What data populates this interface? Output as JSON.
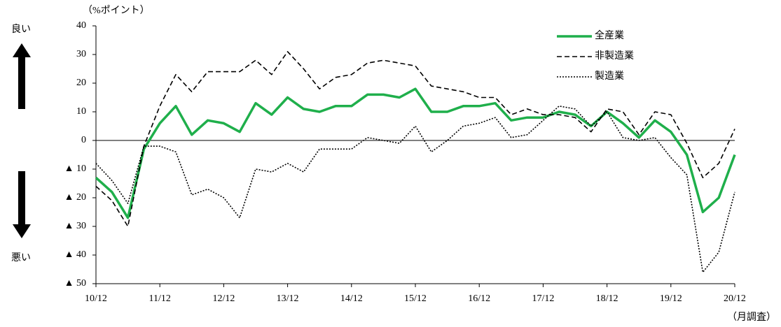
{
  "chart_data": {
    "type": "line",
    "y_unit_label": "（%ポイント）",
    "good_label": "良い",
    "bad_label": "悪い",
    "x_note": "（月調査）",
    "categories": [
      "10/12",
      null,
      null,
      null,
      "11/12",
      null,
      null,
      null,
      "12/12",
      null,
      null,
      null,
      "13/12",
      null,
      null,
      null,
      "14/12",
      null,
      null,
      null,
      "15/12",
      null,
      null,
      null,
      "16/12",
      null,
      null,
      null,
      "17/12",
      null,
      null,
      null,
      "18/12",
      null,
      null,
      null,
      "19/12",
      null,
      null,
      null,
      "20/12"
    ],
    "ylim": [
      -50,
      40
    ],
    "yticks": [
      40,
      30,
      20,
      10,
      0,
      {
        "value": -10,
        "label": "▲ 10"
      },
      {
        "value": -20,
        "label": "▲ 20"
      },
      {
        "value": -30,
        "label": "▲ 30"
      },
      {
        "value": -40,
        "label": "▲ 40"
      },
      {
        "value": -50,
        "label": "▲ 50"
      }
    ],
    "grid": false,
    "legend": "upper right",
    "series": [
      {
        "name": "全産業",
        "color": "#1faf4b",
        "dash": "solid",
        "values": [
          -13,
          -18,
          -27,
          -3,
          6,
          12,
          2,
          7,
          6,
          3,
          13,
          9,
          15,
          11,
          10,
          12,
          12,
          16,
          16,
          15,
          18,
          10,
          10,
          12,
          12,
          13,
          7,
          8,
          8,
          10,
          9,
          5,
          10,
          6,
          1,
          7,
          3,
          -5,
          -25,
          -20,
          -5
        ]
      },
      {
        "name": "非製造業",
        "color": "#000000",
        "dash": "dashed",
        "values": [
          -16,
          -21,
          -30,
          -2,
          12,
          23,
          17,
          24,
          24,
          24,
          28,
          23,
          31,
          25,
          18,
          22,
          23,
          27,
          28,
          27,
          26,
          19,
          18,
          17,
          15,
          15,
          9,
          11,
          9,
          9,
          8,
          3,
          11,
          10,
          2,
          10,
          9,
          -1,
          -13,
          -8,
          4
        ]
      },
      {
        "name": "製造業",
        "color": "#000000",
        "dash": "dotted",
        "values": [
          -8,
          -14,
          -22,
          -2,
          -2,
          -4,
          -19,
          -17,
          -20,
          -27,
          -10,
          -11,
          -8,
          -11,
          -3,
          -3,
          -3,
          1,
          0,
          -1,
          5,
          -4,
          0,
          5,
          6,
          8,
          1,
          2,
          7,
          12,
          11,
          5,
          10,
          1,
          0,
          1,
          -6,
          -12,
          -46,
          -39,
          -18
        ]
      }
    ]
  }
}
